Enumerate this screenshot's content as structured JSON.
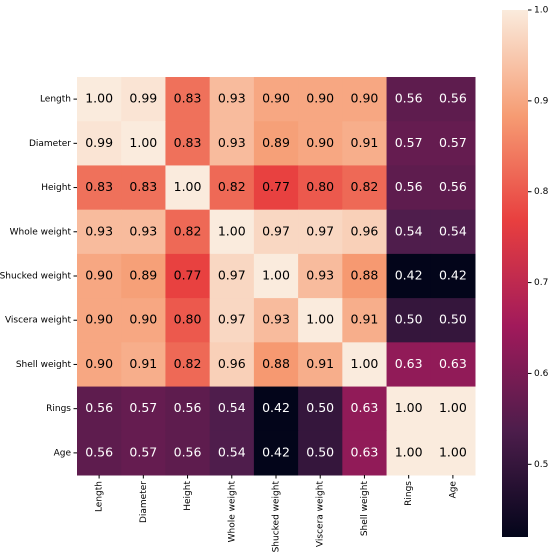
{
  "chart_data": {
    "type": "heatmap",
    "x_categories": [
      "Length",
      "Diameter",
      "Height",
      "Whole weight",
      "Shucked weight",
      "Viscera weight",
      "Shell weight",
      "Rings",
      "Age"
    ],
    "y_categories": [
      "Length",
      "Diameter",
      "Height",
      "Whole weight",
      "Shucked weight",
      "Viscera weight",
      "Shell weight",
      "Rings",
      "Age"
    ],
    "values": [
      [
        1,
        0.99,
        0.83,
        0.93,
        0.9,
        0.9,
        0.9,
        0.56,
        0.56
      ],
      [
        0.99,
        1,
        0.83,
        0.93,
        0.89,
        0.9,
        0.91,
        0.57,
        0.57
      ],
      [
        0.83,
        0.83,
        1,
        0.82,
        0.77,
        0.8,
        0.82,
        0.56,
        0.56
      ],
      [
        0.93,
        0.93,
        0.82,
        1,
        0.97,
        0.97,
        0.96,
        0.54,
        0.54
      ],
      [
        0.9,
        0.89,
        0.77,
        0.97,
        1,
        0.93,
        0.88,
        0.42,
        0.42
      ],
      [
        0.9,
        0.9,
        0.8,
        0.97,
        0.93,
        1,
        0.91,
        0.5,
        0.5
      ],
      [
        0.9,
        0.91,
        0.82,
        0.96,
        0.88,
        0.91,
        1,
        0.63,
        0.63
      ],
      [
        0.56,
        0.57,
        0.56,
        0.54,
        0.42,
        0.5,
        0.63,
        1,
        1
      ],
      [
        0.56,
        0.57,
        0.56,
        0.54,
        0.42,
        0.5,
        0.63,
        1,
        1
      ]
    ],
    "value_labels": [
      [
        "1.00",
        "0.99",
        "0.83",
        "0.93",
        "0.90",
        "0.90",
        "0.90",
        "0.56",
        "0.56"
      ],
      [
        "0.99",
        "1.00",
        "0.83",
        "0.93",
        "0.89",
        "0.90",
        "0.91",
        "0.57",
        "0.57"
      ],
      [
        "0.83",
        "0.83",
        "1.00",
        "0.82",
        "0.77",
        "0.80",
        "0.82",
        "0.56",
        "0.56"
      ],
      [
        "0.93",
        "0.93",
        "0.82",
        "1.00",
        "0.97",
        "0.97",
        "0.96",
        "0.54",
        "0.54"
      ],
      [
        "0.90",
        "0.89",
        "0.77",
        "0.97",
        "1.00",
        "0.93",
        "0.88",
        "0.42",
        "0.42"
      ],
      [
        "0.90",
        "0.90",
        "0.80",
        "0.97",
        "0.93",
        "1.00",
        "0.91",
        "0.50",
        "0.50"
      ],
      [
        "0.90",
        "0.91",
        "0.82",
        "0.96",
        "0.88",
        "0.91",
        "1.00",
        "0.63",
        "0.63"
      ],
      [
        "0.56",
        "0.57",
        "0.56",
        "0.54",
        "0.42",
        "0.50",
        "0.63",
        "1.00",
        "1.00"
      ],
      [
        "0.56",
        "0.57",
        "0.56",
        "0.54",
        "0.42",
        "0.50",
        "0.63",
        "1.00",
        "1.00"
      ]
    ],
    "colormap": [
      "#03051a",
      "#4c1d4b",
      "#a11a5b",
      "#e83f3f",
      "#f69c73",
      "#faebdd"
    ],
    "clim": [
      0.42,
      1
    ],
    "cticks": [
      0.5,
      0.6,
      0.7,
      0.8,
      0.9,
      {
        "value": 1,
        "label": "1.0"
      }
    ]
  }
}
